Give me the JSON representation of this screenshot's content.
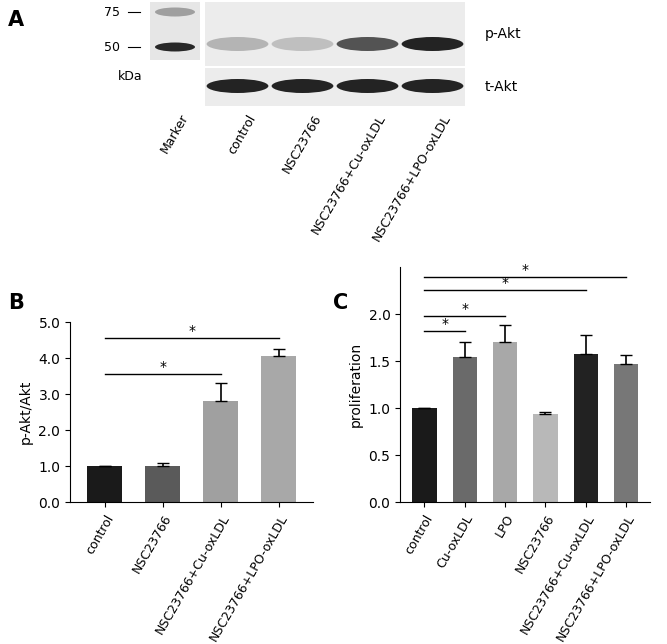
{
  "blot": {
    "panel_label": "A",
    "marker_label": "Marker",
    "marker_sizes": [
      75,
      50
    ],
    "marker_intensity": [
      0.35,
      0.9
    ],
    "unit": "kDa",
    "lanes": [
      "control",
      "NSC23766",
      "NSC23766+Cu-oxLDL",
      "NSC23766+LPO-oxLDL"
    ],
    "rows": [
      {
        "name": "p-Akt",
        "intensity": [
          0.25,
          0.2,
          0.7,
          0.92
        ]
      },
      {
        "name": "t-Akt",
        "intensity": [
          0.92,
          0.92,
          0.92,
          0.92
        ]
      }
    ]
  },
  "chart_data": [
    {
      "type": "bar",
      "panel_label": "B",
      "y_label": "p-Akt/Akt",
      "categories": [
        "control",
        "NSC23766",
        "NSC23766+Cu-oxLDL",
        "NSC23766+LPO-oxLDL"
      ],
      "values": [
        1.0,
        1.02,
        2.8,
        4.07
      ],
      "errors": [
        0.0,
        0.07,
        0.52,
        0.18
      ],
      "colors": [
        "#1a1a1a",
        "#5a5a5a",
        "#a0a0a0",
        "#a8a8a8"
      ],
      "ylim": [
        0,
        5
      ],
      "yticks": [
        {
          "value": 0,
          "label": "0.0"
        },
        {
          "value": 1,
          "label": "1.0"
        },
        {
          "value": 2,
          "label": "2.0"
        },
        {
          "value": 3,
          "label": "3.0"
        },
        {
          "value": 4,
          "label": "4.0"
        },
        {
          "value": 5,
          "label": "5.0"
        }
      ],
      "significance": [
        {
          "from": "control",
          "to": "NSC23766+Cu-oxLDL",
          "y": 3.55,
          "label": "*"
        },
        {
          "from": "control",
          "to": "NSC23766+LPO-oxLDL",
          "y": 4.55,
          "label": "*"
        }
      ]
    },
    {
      "type": "bar",
      "panel_label": "C",
      "y_label": "proliferation",
      "categories": [
        "control",
        "Cu-oxLDL",
        "LPO",
        "NSC23766",
        "NSC23766+Cu-oxLDL",
        "NSC23766+LPO-oxLDL"
      ],
      "values": [
        1.0,
        1.55,
        1.71,
        0.94,
        1.58,
        1.47
      ],
      "errors": [
        0.0,
        0.15,
        0.18,
        0.02,
        0.2,
        0.1
      ],
      "colors": [
        "#1a1a1a",
        "#6a6a6a",
        "#a8a8a8",
        "#b8b8b8",
        "#222222",
        "#777777"
      ],
      "ylim": [
        0,
        2.5
      ],
      "yticks": [
        {
          "value": 0,
          "label": "0.0"
        },
        {
          "value": 0.5,
          "label": "0.5"
        },
        {
          "value": 1,
          "label": "1.0"
        },
        {
          "value": 1.5,
          "label": "1.5"
        },
        {
          "value": 2,
          "label": "2.0"
        }
      ],
      "significance": [
        {
          "from": "control",
          "to": "Cu-oxLDL",
          "y": 1.82,
          "label": "*"
        },
        {
          "from": "control",
          "to": "LPO",
          "y": 1.98,
          "label": "*"
        },
        {
          "from": "control",
          "to": "NSC23766+Cu-oxLDL",
          "y": 2.26,
          "label": "*"
        },
        {
          "from": "control",
          "to": "NSC23766+LPO-oxLDL",
          "y": 2.4,
          "label": "*"
        }
      ]
    }
  ]
}
